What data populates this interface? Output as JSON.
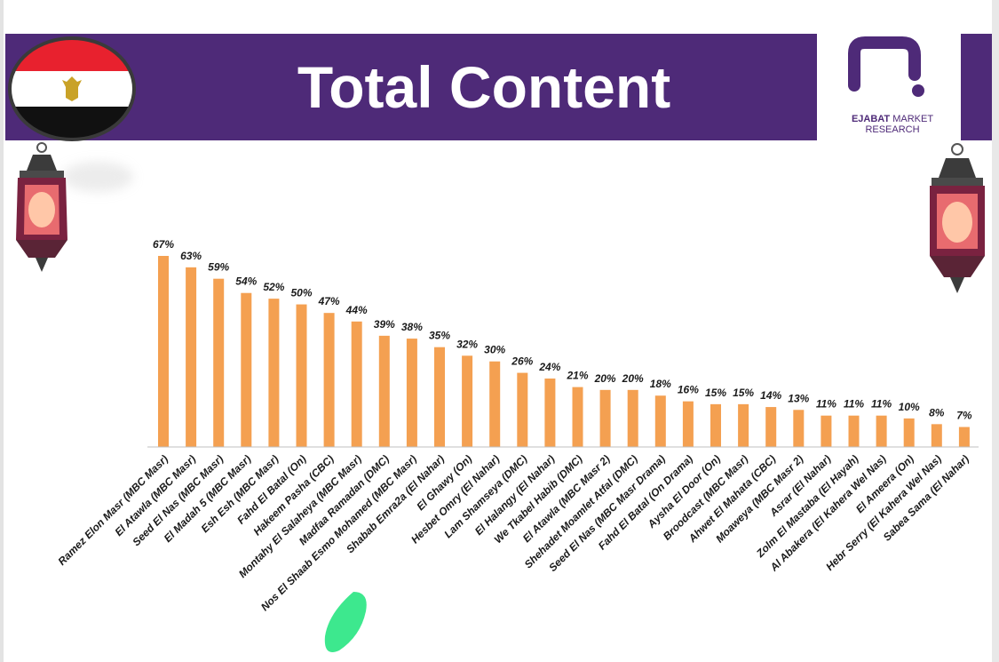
{
  "header": {
    "title": "Total Content",
    "logo_word": "ejabat",
    "logo_brand": "EJABAT",
    "logo_rest": " MARKET RESEARCH"
  },
  "colors": {
    "banner": "#4e2a78",
    "bar": "#f4a051",
    "flag_red": "#e8212e",
    "flag_black": "#111111",
    "flag_eagle": "#c9a227",
    "highlight": "#3de88e"
  },
  "chart_data": {
    "type": "bar",
    "title": "Total Content",
    "xlabel": "",
    "ylabel": "",
    "ylim": [
      0,
      70
    ],
    "grid": false,
    "legend": "none",
    "categories": [
      "Ramez Elon Masr (MBC Masr)",
      "El Atawla (MBC Masr)",
      "Seed El Nas (MBC Masr)",
      "El Madah 5 (MBC Masr)",
      "Esh Esh (MBC Masr)",
      "Fahd El Batal (On)",
      "Hakeem Pasha (CBC)",
      "Montahy El Salaheya (MBC Masr)",
      "Madfaa Ramadan (DMC)",
      "Nos El Shaab Esmo Mohamed (MBC Masr)",
      "Shabab Emra2a (El Nahar)",
      "El Ghawy (On)",
      "Hesbet Omry (El Nahar)",
      "Lam Shamseya (DMC)",
      "El Halangy (El Nahar)",
      "We Tkabel Habib (DMC)",
      "El Atawla (MBC Masr 2)",
      "Shehadet Moamlet Atfal (DMC)",
      "Seed El Nas (MBC Masr Drama)",
      "Fahd El Batal (On Drama)",
      "Aysha El Door (On)",
      "Broodcast (MBC Masr)",
      "Ahwet El Mahata (CBC)",
      "Moaweya (MBC Masr 2)",
      "Asrar (El Nahar)",
      "Zolm El Mastaba (El Hayah)",
      "Al Abakera (El Kahera Wel Nas)",
      "El Ameera (On)",
      "Hebr Serry (El Kahera Wel Nas)",
      "Sabea Sama (El Nahar)"
    ],
    "values": [
      67,
      63,
      59,
      54,
      52,
      50,
      47,
      44,
      39,
      38,
      35,
      32,
      30,
      26,
      24,
      21,
      20,
      20,
      18,
      16,
      15,
      15,
      14,
      13,
      11,
      11,
      11,
      10,
      8,
      7
    ],
    "labels": [
      "67%",
      "63%",
      "59%",
      "54%",
      "52%",
      "50%",
      "47%",
      "44%",
      "39%",
      "38%",
      "35%",
      "32%",
      "30%",
      "26%",
      "24%",
      "21%",
      "20%",
      "20%",
      "18%",
      "16%",
      "15%",
      "15%",
      "14%",
      "13%",
      "11%",
      "11%",
      "11%",
      "10%",
      "8%",
      "7%"
    ]
  }
}
